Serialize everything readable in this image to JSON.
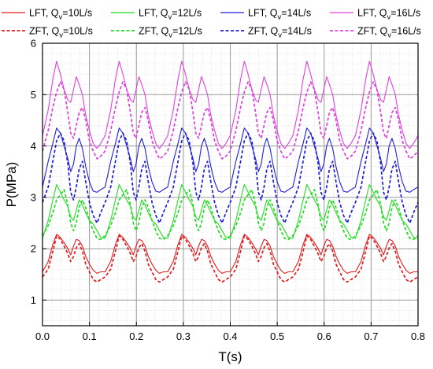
{
  "chart_data": {
    "type": "line",
    "xlabel": "T(s)",
    "ylabel": "P(MPa)",
    "xlim": [
      0.0,
      0.8
    ],
    "ylim": [
      0.5,
      6.0
    ],
    "x_ticks": [
      "0.0",
      "0.1",
      "0.2",
      "0.3",
      "0.4",
      "0.5",
      "0.6",
      "0.7",
      "0.8"
    ],
    "y_ticks": [
      "1",
      "2",
      "3",
      "4",
      "5",
      "6"
    ],
    "grid": true,
    "legend_position": "top",
    "period_s": 0.1333,
    "cycle_x": [
      0.0,
      0.012,
      0.022,
      0.03,
      0.038,
      0.046,
      0.054,
      0.06,
      0.066,
      0.072,
      0.078,
      0.085,
      0.092,
      0.1,
      0.108,
      0.116,
      0.124,
      0.1333
    ],
    "series": [
      {
        "name": "LFT, Qv=10L/s",
        "color": "#e41a1c",
        "dashed": false,
        "cycle_y": [
          1.55,
          1.75,
          2.08,
          2.28,
          2.22,
          2.12,
          2.0,
          1.88,
          2.05,
          2.18,
          2.16,
          2.05,
          1.85,
          1.7,
          1.58,
          1.52,
          1.55,
          1.55
        ]
      },
      {
        "name": "LFT, Qv=12L/s",
        "color": "#22dd22",
        "dashed": false,
        "cycle_y": [
          2.2,
          2.55,
          2.95,
          3.25,
          3.1,
          2.95,
          2.82,
          2.62,
          2.55,
          2.75,
          2.95,
          2.85,
          2.7,
          2.55,
          2.48,
          2.35,
          2.22,
          2.2
        ]
      },
      {
        "name": "LFT, Qv=14L/s",
        "color": "#1f1fd6",
        "dashed": false,
        "cycle_y": [
          3.2,
          3.7,
          4.05,
          4.35,
          4.25,
          4.0,
          3.75,
          3.5,
          3.65,
          4.0,
          4.15,
          3.95,
          3.6,
          3.3,
          3.12,
          3.1,
          3.15,
          3.2
        ]
      },
      {
        "name": "LFT, Qv=16L/s",
        "color": "#e040e0",
        "dashed": false,
        "cycle_y": [
          4.2,
          4.7,
          5.3,
          5.65,
          5.4,
          5.1,
          4.9,
          4.85,
          5.1,
          5.35,
          5.2,
          5.0,
          4.6,
          4.3,
          4.05,
          3.95,
          4.05,
          4.2
        ]
      },
      {
        "name": "ZFT, Qv=10L/s",
        "color": "#e41a1c",
        "dashed": true,
        "cycle_y": [
          1.45,
          1.6,
          1.95,
          2.25,
          2.18,
          2.05,
          1.9,
          1.75,
          1.85,
          2.02,
          2.1,
          1.95,
          1.7,
          1.55,
          1.4,
          1.35,
          1.4,
          1.45
        ]
      },
      {
        "name": "ZFT, Qv=12L/s",
        "color": "#22dd22",
        "dashed": true,
        "cycle_y": [
          2.25,
          2.45,
          2.7,
          2.95,
          3.05,
          3.15,
          2.85,
          2.5,
          2.35,
          2.5,
          2.8,
          2.95,
          2.8,
          2.55,
          2.35,
          2.2,
          2.18,
          2.25
        ]
      },
      {
        "name": "ZFT, Qv=14L/s",
        "color": "#1f1fd6",
        "dashed": true,
        "cycle_y": [
          2.9,
          3.2,
          3.7,
          4.1,
          4.25,
          4.1,
          3.65,
          3.1,
          2.95,
          3.2,
          3.55,
          3.7,
          3.3,
          2.9,
          2.65,
          2.5,
          2.7,
          2.9
        ]
      },
      {
        "name": "ZFT, Qv=16L/s",
        "color": "#e040e0",
        "dashed": true,
        "cycle_y": [
          3.9,
          4.3,
          4.75,
          5.05,
          5.25,
          5.1,
          4.65,
          4.25,
          4.15,
          4.4,
          4.65,
          4.75,
          4.5,
          4.1,
          3.9,
          3.75,
          3.8,
          3.9
        ]
      }
    ]
  },
  "legend": {
    "row1": [
      {
        "prefix": "LFT, Q",
        "sub": "v",
        "suffix": "=10L/s"
      },
      {
        "prefix": "LFT, Q",
        "sub": "v",
        "suffix": "=12L/s"
      },
      {
        "prefix": "LFT, Q",
        "sub": "v",
        "suffix": "=14L/s"
      },
      {
        "prefix": "LFT, Q",
        "sub": "v",
        "suffix": "=16L/s"
      }
    ],
    "row2": [
      {
        "prefix": "ZFT, Q",
        "sub": "v",
        "suffix": "=10L/s"
      },
      {
        "prefix": "ZFT, Q",
        "sub": "v",
        "suffix": "=12L/s"
      },
      {
        "prefix": "ZFT, Q",
        "sub": "v",
        "suffix": "=14L/s"
      },
      {
        "prefix": "ZFT, Q",
        "sub": "v",
        "suffix": "=16L/s"
      }
    ]
  }
}
